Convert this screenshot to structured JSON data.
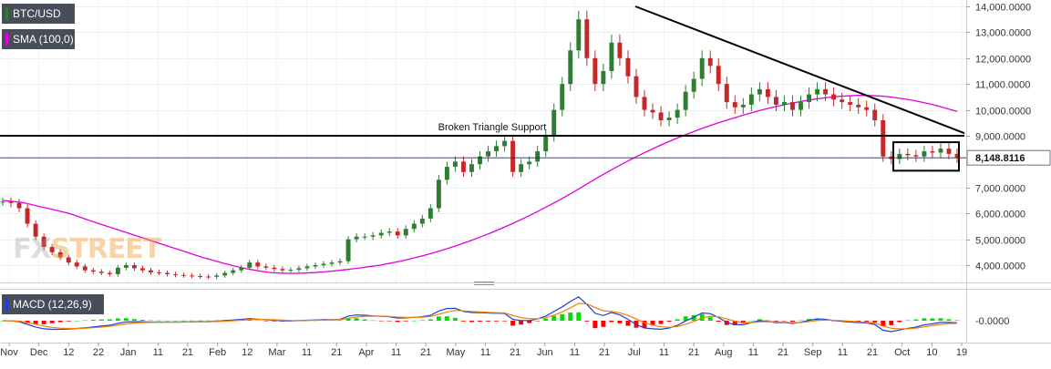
{
  "chart_data": [
    {
      "type": "line",
      "symbol": "BTC/USD",
      "indicator": "SMA (100,0)",
      "y_axis_range": [
        3400,
        14000
      ],
      "y_ticks": [
        {
          "value": 14000,
          "label": "14,000.0000"
        },
        {
          "value": 13000,
          "label": "13,000.0000"
        },
        {
          "value": 12000,
          "label": "12,000.0000"
        },
        {
          "value": 11000,
          "label": "11,000.0000"
        },
        {
          "value": 10000,
          "label": "10,000.0000"
        },
        {
          "value": 9000,
          "label": "9,000.0000"
        },
        {
          "value": 7000,
          "label": "7,000.0000"
        },
        {
          "value": 6000,
          "label": "6,000.0000"
        },
        {
          "value": 5000,
          "label": "5,000.0000"
        },
        {
          "value": 4000,
          "label": "4,000.0000"
        }
      ],
      "current_price": {
        "value": 8148.8116,
        "label": "8,148.8116"
      },
      "x_ticks": [
        "Nov",
        "Dec",
        "12",
        "22",
        "Jan",
        "11",
        "21",
        "Feb",
        "12",
        "Mar",
        "11",
        "21",
        "Apr",
        "11",
        "21",
        "May",
        "11",
        "21",
        "Jun",
        "11",
        "21",
        "Jul",
        "11",
        "21",
        "Aug",
        "11",
        "21",
        "Sep",
        "11",
        "21",
        "Oct",
        "10",
        "19"
      ],
      "price_series": {
        "name": "BTC/USD",
        "values": [
          6450,
          6400,
          6200,
          5600,
          5100,
          4700,
          4500,
          4300,
          4100,
          3950,
          3800,
          3750,
          3700,
          3650,
          3900,
          4000,
          3880,
          3800,
          3720,
          3700,
          3650,
          3620,
          3600,
          3580,
          3560,
          3550,
          3600,
          3700,
          3800,
          3900,
          4100,
          3950,
          3900,
          3850,
          3800,
          3820,
          3880,
          3950,
          4000,
          4050,
          4100,
          4150,
          5000,
          5100,
          5100,
          5150,
          5250,
          5300,
          5150,
          5400,
          5600,
          5800,
          6200,
          7300,
          7800,
          8000,
          7600,
          7900,
          8200,
          8400,
          8600,
          8800,
          7600,
          7900,
          8000,
          8400,
          9000,
          10000,
          11000,
          12300,
          13500,
          12000,
          11000,
          11500,
          12600,
          12000,
          11300,
          10500,
          10000,
          9900,
          9600,
          9700,
          10000,
          10700,
          11200,
          12000,
          11700,
          11000,
          10300,
          10100,
          10200,
          10600,
          10800,
          10500,
          10200,
          10300,
          10000,
          10300,
          10600,
          10800,
          10600,
          10400,
          10300,
          10200,
          10100,
          10000,
          9600,
          8200,
          8100,
          8300,
          8250,
          8200,
          8400,
          8350,
          8500,
          8300,
          8150
        ]
      },
      "sma_series": {
        "name": "SMA (100,0)",
        "values": [
          6500,
          6460,
          6400,
          6300,
          6200,
          6100,
          6000,
          5850,
          5700,
          5560,
          5420,
          5280,
          5140,
          5000,
          4860,
          4720,
          4580,
          4440,
          4300,
          4180,
          4060,
          3950,
          3860,
          3780,
          3720,
          3690,
          3680,
          3690,
          3710,
          3740,
          3780,
          3830,
          3880,
          3940,
          4000,
          4080,
          4170,
          4270,
          4380,
          4500,
          4630,
          4770,
          4920,
          5080,
          5250,
          5430,
          5620,
          5820,
          6030,
          6250,
          6480,
          6720,
          6970,
          7230,
          7480,
          7720,
          7950,
          8170,
          8380,
          8580,
          8770,
          8950,
          9120,
          9280,
          9430,
          9570,
          9700,
          9830,
          9950,
          10060,
          10160,
          10250,
          10330,
          10400,
          10460,
          10510,
          10540,
          10560,
          10560,
          10540,
          10500,
          10440,
          10370,
          10280,
          10180,
          10060,
          9940
        ]
      },
      "trendlines": [
        {
          "label": "Broken Triangle Support",
          "kind": "horizontal",
          "value": 9000
        },
        {
          "label": "",
          "kind": "descending",
          "from": {
            "date": "Jun 26",
            "value": 14000
          },
          "to": {
            "date": "Oct 19",
            "value": 9100
          }
        }
      ],
      "range_box": {
        "from": "Sep 24",
        "to": "Oct 15",
        "low": 7650,
        "high": 8750
      }
    },
    {
      "type": "bar",
      "indicator": "MACD (12,26,9)",
      "y_ticks": [
        {
          "value": 0,
          "label": "-0.0000"
        }
      ],
      "histogram_colors": {
        "positive": "#00e000",
        "negative": "#ff0000"
      },
      "macd_line_color": "#1e3fd6",
      "signal_line_color": "#f08000"
    }
  ],
  "colors": {
    "up_candle": "#2e7d32",
    "down_candle": "#c62828",
    "sma": "#e000e0",
    "price_line": "#1a237e",
    "legend_bg": "#474d59",
    "price_tag_bg": "#ffffff"
  },
  "watermark": {
    "part1": "FX",
    "part2": "STREET"
  }
}
